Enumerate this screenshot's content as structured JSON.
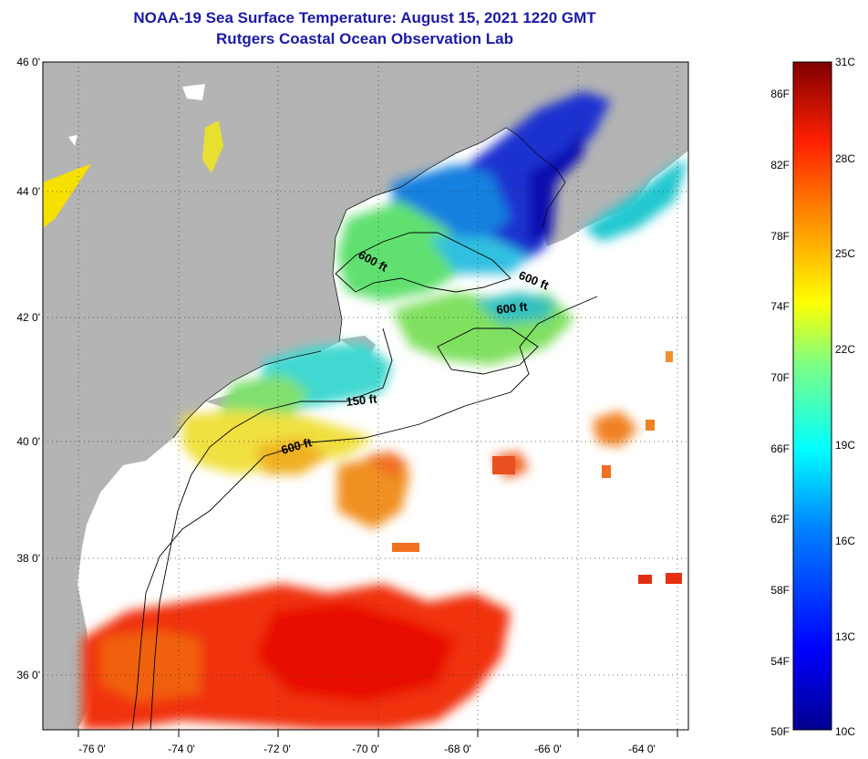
{
  "title": "NOAA-19 Sea Surface Temperature:  August 15, 2021 1220 GMT",
  "subtitle": "Rutgers Coastal Ocean Observation Lab",
  "map": {
    "lat_labels": [
      "46 0'",
      "44 0'",
      "42 0'",
      "40 0'",
      "38 0'",
      "36 0'"
    ],
    "lon_labels": [
      "-76 0'",
      "-74 0'",
      "-72 0'",
      "-70 0'",
      "-68 0'",
      "-66 0'",
      "-64 0'"
    ],
    "contour_labels": [
      {
        "text": "600 ft"
      },
      {
        "text": "600 ft"
      },
      {
        "text": "600 ft"
      },
      {
        "text": "150 ft"
      },
      {
        "text": "600 ft"
      }
    ],
    "colors": {
      "land": "#b4b4b4",
      "cloud": "#ffffff",
      "contour": "#000000"
    }
  },
  "colorbar": {
    "fahrenheit_labels": [
      "86F",
      "82F",
      "78F",
      "74F",
      "70F",
      "66F",
      "62F",
      "58F",
      "54F",
      "50F"
    ],
    "celsius_labels": [
      "31C",
      "28C",
      "25C",
      "22C",
      "19C",
      "16C",
      "13C",
      "10C"
    ]
  }
}
